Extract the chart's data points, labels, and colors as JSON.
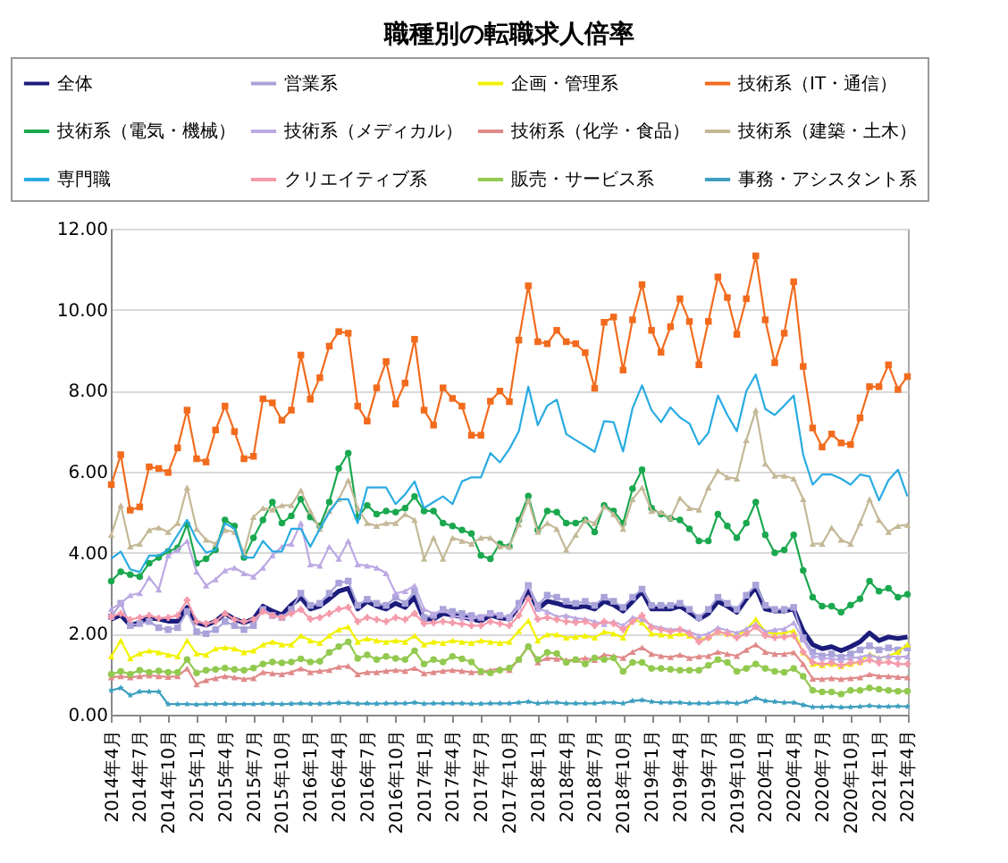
{
  "chart_data": {
    "type": "line",
    "title": "職種別の転職求人倍率",
    "legend": "top",
    "grid": "y",
    "ylim": [
      0,
      12
    ],
    "yticks": [
      {
        "value": 0,
        "label": "0.00"
      },
      {
        "value": 2,
        "label": "2.00"
      },
      {
        "value": 4,
        "label": "4.00"
      },
      {
        "value": 6,
        "label": "6.00"
      },
      {
        "value": 8,
        "label": "8.00"
      },
      {
        "value": 10,
        "label": "10.00"
      },
      {
        "value": 12,
        "label": "12.00"
      }
    ],
    "categories": [
      "2014年4月",
      null,
      null,
      "2014年7月",
      null,
      null,
      "2014年10月",
      null,
      null,
      "2015年1月",
      null,
      null,
      "2015年4月",
      null,
      null,
      "2015年7月",
      null,
      null,
      "2015年10月",
      null,
      null,
      "2016年1月",
      null,
      null,
      "2016年4月",
      null,
      null,
      "2016年7月",
      null,
      null,
      "2016年10月",
      null,
      null,
      "2017年1月",
      null,
      null,
      "2017年4月",
      null,
      null,
      "2017年7月",
      null,
      null,
      "2017年10月",
      null,
      null,
      "2018年1月",
      null,
      null,
      "2018年4月",
      null,
      null,
      "2018年7月",
      null,
      null,
      "2018年10月",
      null,
      null,
      "2019年1月",
      null,
      null,
      "2019年4月",
      null,
      null,
      "2019年7月",
      null,
      null,
      "2019年10月",
      null,
      null,
      "2020年1月",
      null,
      null,
      "2020年4月",
      null,
      null,
      "2020年7月",
      null,
      null,
      "2020年10月",
      null,
      null,
      "2021年1月",
      null,
      null,
      "2021年4月"
    ],
    "series": [
      {
        "name": "全体",
        "color": "#1c1c7c",
        "marker": "none",
        "values": [
          2.36,
          2.46,
          2.21,
          2.27,
          2.39,
          2.36,
          2.31,
          2.31,
          2.65,
          2.27,
          2.21,
          2.31,
          2.5,
          2.36,
          2.27,
          2.36,
          2.68,
          2.56,
          2.46,
          2.71,
          2.9,
          2.61,
          2.68,
          2.86,
          3.05,
          3.12,
          2.61,
          2.8,
          2.68,
          2.61,
          2.75,
          2.65,
          2.9,
          2.36,
          2.36,
          2.5,
          2.46,
          2.42,
          2.36,
          2.31,
          2.46,
          2.39,
          2.36,
          2.68,
          3.09,
          2.61,
          2.8,
          2.75,
          2.68,
          2.65,
          2.68,
          2.61,
          2.8,
          2.71,
          2.56,
          2.8,
          3.05,
          2.61,
          2.61,
          2.61,
          2.68,
          2.53,
          2.36,
          2.5,
          2.8,
          2.68,
          2.53,
          2.86,
          3.15,
          2.61,
          2.56,
          2.56,
          2.61,
          2.07,
          1.73,
          1.63,
          1.68,
          1.58,
          1.68,
          1.8,
          2.02,
          1.83,
          1.92,
          1.88,
          1.92
        ]
      },
      {
        "name": "営業系",
        "color": "#a9a3d9",
        "marker": "square",
        "values": [
          2.42,
          2.75,
          2.2,
          2.25,
          2.3,
          2.15,
          2.1,
          2.15,
          2.55,
          2.05,
          2.0,
          2.1,
          2.3,
          2.2,
          2.1,
          2.2,
          2.6,
          2.45,
          2.4,
          2.6,
          3.0,
          2.7,
          2.75,
          3.0,
          3.25,
          3.3,
          2.7,
          2.85,
          2.75,
          2.7,
          2.9,
          2.75,
          3.05,
          2.4,
          2.45,
          2.6,
          2.55,
          2.5,
          2.45,
          2.4,
          2.5,
          2.45,
          2.4,
          2.75,
          3.19,
          2.7,
          2.95,
          2.9,
          2.8,
          2.75,
          2.8,
          2.7,
          2.9,
          2.8,
          2.65,
          2.9,
          3.1,
          2.7,
          2.7,
          2.7,
          2.75,
          2.6,
          2.4,
          2.6,
          2.9,
          2.75,
          2.6,
          2.95,
          3.2,
          2.7,
          2.6,
          2.6,
          2.65,
          1.9,
          1.55,
          1.45,
          1.5,
          1.42,
          1.5,
          1.6,
          1.7,
          1.6,
          1.65,
          1.6,
          1.65
        ]
      },
      {
        "name": "企画・管理系",
        "color": "#f2f200",
        "marker": "triangle",
        "values": [
          1.44,
          1.83,
          1.39,
          1.51,
          1.58,
          1.54,
          1.48,
          1.44,
          1.83,
          1.51,
          1.48,
          1.63,
          1.66,
          1.63,
          1.54,
          1.58,
          1.73,
          1.8,
          1.73,
          1.73,
          1.95,
          1.83,
          1.77,
          1.95,
          2.1,
          2.17,
          1.8,
          1.88,
          1.83,
          1.8,
          1.83,
          1.8,
          1.95,
          1.73,
          1.8,
          1.77,
          1.83,
          1.8,
          1.77,
          1.83,
          1.8,
          1.77,
          1.8,
          2.07,
          2.32,
          1.83,
          1.98,
          1.98,
          1.9,
          1.92,
          1.95,
          1.9,
          2.05,
          2.0,
          1.9,
          2.36,
          2.27,
          2.0,
          1.98,
          1.95,
          2.0,
          1.95,
          1.85,
          1.92,
          2.05,
          2.0,
          1.95,
          2.1,
          2.36,
          2.05,
          2.0,
          2.02,
          2.07,
          1.54,
          1.25,
          1.22,
          1.25,
          1.2,
          1.25,
          1.3,
          1.5,
          1.4,
          1.45,
          1.55,
          1.73
        ]
      },
      {
        "name": "技術系（IT・通信）",
        "color": "#f26b1d",
        "marker": "square",
        "values": [
          5.68,
          6.42,
          5.05,
          5.13,
          6.12,
          6.08,
          5.98,
          6.59,
          7.52,
          6.32,
          6.24,
          7.03,
          7.62,
          6.99,
          6.32,
          6.38,
          7.8,
          7.7,
          7.27,
          7.52,
          8.88,
          7.79,
          8.32,
          9.1,
          9.46,
          9.42,
          7.62,
          7.25,
          8.07,
          8.72,
          7.67,
          8.19,
          9.27,
          7.52,
          7.15,
          8.07,
          7.81,
          7.62,
          6.9,
          6.9,
          7.74,
          7.99,
          7.73,
          9.25,
          10.59,
          9.21,
          9.16,
          9.49,
          9.21,
          9.16,
          8.94,
          8.06,
          9.69,
          9.82,
          8.51,
          9.75,
          10.62,
          9.49,
          8.95,
          9.58,
          10.27,
          9.71,
          8.64,
          9.71,
          10.81,
          10.3,
          9.39,
          10.27,
          11.33,
          9.75,
          8.69,
          9.42,
          10.69,
          8.6,
          7.08,
          6.61,
          6.93,
          6.71,
          6.67,
          7.33,
          8.1,
          8.1,
          8.64,
          8.03,
          8.35
        ]
      },
      {
        "name": "技術系（電気・機械）",
        "color": "#1aa84f",
        "marker": "circle",
        "values": [
          3.3,
          3.53,
          3.46,
          3.41,
          3.74,
          3.88,
          4.03,
          4.12,
          4.7,
          3.74,
          3.85,
          4.07,
          4.81,
          4.66,
          3.88,
          4.37,
          4.81,
          5.25,
          4.73,
          4.91,
          5.32,
          4.88,
          4.66,
          5.25,
          6.08,
          6.46,
          4.88,
          5.17,
          4.95,
          5.03,
          5.0,
          5.1,
          5.39,
          5.03,
          5.03,
          4.73,
          4.66,
          4.56,
          4.47,
          3.93,
          3.85,
          4.22,
          4.15,
          4.81,
          5.4,
          4.56,
          5.03,
          5.0,
          4.73,
          4.73,
          4.81,
          4.51,
          5.17,
          5.03,
          4.73,
          5.58,
          6.05,
          5.1,
          4.95,
          4.85,
          4.81,
          4.59,
          4.29,
          4.29,
          4.95,
          4.66,
          4.37,
          4.73,
          5.25,
          4.44,
          4.0,
          4.07,
          4.44,
          3.56,
          2.9,
          2.68,
          2.68,
          2.53,
          2.71,
          2.86,
          3.3,
          3.05,
          3.12,
          2.9,
          2.97
        ]
      },
      {
        "name": "技術系（メディカル）",
        "color": "#bca9e3",
        "marker": "triangle",
        "values": [
          2.61,
          2.75,
          2.95,
          3.0,
          3.38,
          3.09,
          3.93,
          4.07,
          4.29,
          3.53,
          3.19,
          3.34,
          3.56,
          3.63,
          3.49,
          3.41,
          3.63,
          3.93,
          4.15,
          4.22,
          4.73,
          3.71,
          3.68,
          4.15,
          3.85,
          4.29,
          3.71,
          3.68,
          3.63,
          3.49,
          3.0,
          3.05,
          3.19,
          2.61,
          2.5,
          2.58,
          2.45,
          2.4,
          2.36,
          2.42,
          2.5,
          2.46,
          2.4,
          2.65,
          3.19,
          2.61,
          2.55,
          2.42,
          2.45,
          2.38,
          2.36,
          2.3,
          2.24,
          2.3,
          2.2,
          2.4,
          2.36,
          2.2,
          2.15,
          2.1,
          2.12,
          2.05,
          1.95,
          2.0,
          2.15,
          2.08,
          2.02,
          2.12,
          2.24,
          2.05,
          2.1,
          2.12,
          2.27,
          1.85,
          1.45,
          1.4,
          1.38,
          1.35,
          1.4,
          1.42,
          1.48,
          1.4,
          1.45,
          1.42,
          1.44
        ]
      },
      {
        "name": "技術系（化学・食品）",
        "color": "#e08a8a",
        "marker": "triangle",
        "values": [
          0.92,
          0.95,
          0.92,
          0.95,
          0.97,
          0.95,
          0.93,
          0.95,
          1.14,
          0.75,
          0.85,
          0.9,
          0.95,
          0.92,
          0.88,
          0.9,
          1.05,
          1.02,
          1.0,
          1.05,
          1.14,
          1.05,
          1.08,
          1.1,
          1.18,
          1.2,
          1.0,
          1.05,
          1.05,
          1.08,
          1.1,
          1.08,
          1.15,
          1.02,
          1.05,
          1.08,
          1.1,
          1.08,
          1.05,
          1.05,
          1.1,
          1.14,
          1.1,
          1.36,
          1.7,
          1.29,
          1.4,
          1.38,
          1.35,
          1.35,
          1.4,
          1.35,
          1.48,
          1.45,
          1.4,
          1.55,
          1.66,
          1.5,
          1.45,
          1.42,
          1.48,
          1.4,
          1.44,
          1.45,
          1.55,
          1.5,
          1.45,
          1.6,
          1.73,
          1.55,
          1.5,
          1.5,
          1.54,
          1.25,
          0.89,
          0.88,
          0.9,
          0.88,
          0.9,
          0.92,
          1.0,
          0.95,
          0.95,
          0.93,
          0.92
        ]
      },
      {
        "name": "技術系（建築・土木）",
        "color": "#c4b897",
        "marker": "triangle",
        "values": [
          4.44,
          5.17,
          4.15,
          4.22,
          4.56,
          4.62,
          4.51,
          4.73,
          5.61,
          4.59,
          4.32,
          4.22,
          4.56,
          4.51,
          4.0,
          4.88,
          5.1,
          5.06,
          5.17,
          5.17,
          5.54,
          5.03,
          4.59,
          5.03,
          5.32,
          5.79,
          5.1,
          4.73,
          4.66,
          4.73,
          4.73,
          4.95,
          4.81,
          3.85,
          4.37,
          3.85,
          4.37,
          4.29,
          4.22,
          4.37,
          4.37,
          4.15,
          4.15,
          4.7,
          5.3,
          4.51,
          4.73,
          4.59,
          4.07,
          4.44,
          4.81,
          4.73,
          5.14,
          4.95,
          4.59,
          5.32,
          5.61,
          5.03,
          5.0,
          4.85,
          5.35,
          5.1,
          5.06,
          5.61,
          6.02,
          5.86,
          5.83,
          6.78,
          7.52,
          6.2,
          5.9,
          5.9,
          5.83,
          5.32,
          4.22,
          4.22,
          4.62,
          4.32,
          4.22,
          4.73,
          5.32,
          4.81,
          4.51,
          4.66,
          4.69
        ]
      },
      {
        "name": "専門職",
        "color": "#29abe2",
        "marker": "none",
        "values": [
          3.85,
          4.03,
          3.59,
          3.52,
          3.93,
          3.93,
          4.07,
          4.44,
          4.81,
          4.32,
          4.0,
          4.07,
          4.73,
          4.59,
          3.88,
          3.88,
          4.29,
          4.03,
          4.03,
          4.59,
          4.59,
          4.15,
          4.59,
          5.0,
          5.32,
          5.32,
          4.73,
          5.61,
          5.61,
          5.61,
          5.2,
          5.44,
          5.76,
          5.1,
          5.25,
          5.39,
          5.2,
          5.76,
          5.86,
          5.86,
          6.46,
          6.23,
          6.56,
          7.0,
          8.1,
          7.15,
          7.63,
          7.78,
          6.93,
          6.78,
          6.64,
          6.49,
          7.25,
          7.22,
          6.5,
          7.57,
          8.13,
          7.52,
          7.22,
          7.59,
          7.34,
          7.19,
          6.67,
          6.96,
          7.88,
          7.4,
          7.0,
          7.99,
          8.4,
          7.55,
          7.4,
          7.63,
          7.88,
          6.42,
          5.68,
          5.93,
          5.93,
          5.83,
          5.68,
          5.93,
          5.88,
          5.29,
          5.79,
          6.05,
          5.39
        ]
      },
      {
        "name": "クリエイティブ系",
        "color": "#f59aaa",
        "marker": "cross",
        "values": [
          2.42,
          2.5,
          2.35,
          2.4,
          2.45,
          2.38,
          2.4,
          2.45,
          2.83,
          2.3,
          2.25,
          2.3,
          2.5,
          2.35,
          2.3,
          2.35,
          2.55,
          2.45,
          2.4,
          2.5,
          2.6,
          2.36,
          2.4,
          2.5,
          2.61,
          2.65,
          2.3,
          2.4,
          2.35,
          2.3,
          2.4,
          2.35,
          2.5,
          2.25,
          2.27,
          2.3,
          2.27,
          2.24,
          2.2,
          2.2,
          2.3,
          2.25,
          2.2,
          2.45,
          2.86,
          2.36,
          2.4,
          2.35,
          2.3,
          2.28,
          2.3,
          2.2,
          2.3,
          2.25,
          2.1,
          2.3,
          2.45,
          2.15,
          2.1,
          2.05,
          2.1,
          2.0,
          1.8,
          1.9,
          2.05,
          2.0,
          1.9,
          2.0,
          2.17,
          1.95,
          1.9,
          1.92,
          1.95,
          1.55,
          1.29,
          1.25,
          1.28,
          1.22,
          1.28,
          1.3,
          1.35,
          1.28,
          1.3,
          1.25,
          1.25
        ]
      },
      {
        "name": "販売・サービス系",
        "color": "#92c94f",
        "marker": "circle",
        "values": [
          1.0,
          1.07,
          1.0,
          1.1,
          1.05,
          1.08,
          1.05,
          1.05,
          1.36,
          1.03,
          1.1,
          1.12,
          1.15,
          1.12,
          1.1,
          1.15,
          1.25,
          1.3,
          1.28,
          1.3,
          1.38,
          1.3,
          1.32,
          1.54,
          1.68,
          1.8,
          1.39,
          1.48,
          1.36,
          1.44,
          1.39,
          1.36,
          1.58,
          1.25,
          1.36,
          1.3,
          1.44,
          1.38,
          1.3,
          1.07,
          1.03,
          1.1,
          1.15,
          1.36,
          1.68,
          1.36,
          1.54,
          1.51,
          1.29,
          1.36,
          1.25,
          1.4,
          1.36,
          1.4,
          1.07,
          1.29,
          1.29,
          1.14,
          1.14,
          1.12,
          1.1,
          1.1,
          1.1,
          1.22,
          1.36,
          1.29,
          1.07,
          1.14,
          1.25,
          1.14,
          1.07,
          1.05,
          1.14,
          0.95,
          0.6,
          0.56,
          0.56,
          0.51,
          0.6,
          0.6,
          0.66,
          0.63,
          0.6,
          0.58,
          0.58
        ]
      },
      {
        "name": "事務・アシスタント系",
        "color": "#3d9fbf",
        "marker": "star",
        "values": [
          0.6,
          0.66,
          0.48,
          0.57,
          0.57,
          0.57,
          0.26,
          0.26,
          0.26,
          0.25,
          0.26,
          0.26,
          0.27,
          0.26,
          0.26,
          0.26,
          0.27,
          0.27,
          0.26,
          0.27,
          0.28,
          0.27,
          0.27,
          0.28,
          0.29,
          0.29,
          0.27,
          0.28,
          0.27,
          0.28,
          0.28,
          0.28,
          0.3,
          0.27,
          0.28,
          0.28,
          0.28,
          0.28,
          0.27,
          0.27,
          0.28,
          0.28,
          0.28,
          0.3,
          0.32,
          0.28,
          0.3,
          0.3,
          0.28,
          0.28,
          0.28,
          0.28,
          0.3,
          0.3,
          0.28,
          0.34,
          0.36,
          0.32,
          0.3,
          0.3,
          0.3,
          0.28,
          0.28,
          0.28,
          0.3,
          0.3,
          0.28,
          0.32,
          0.41,
          0.34,
          0.32,
          0.3,
          0.3,
          0.24,
          0.19,
          0.19,
          0.2,
          0.18,
          0.19,
          0.2,
          0.22,
          0.2,
          0.2,
          0.21,
          0.2
        ]
      }
    ]
  }
}
